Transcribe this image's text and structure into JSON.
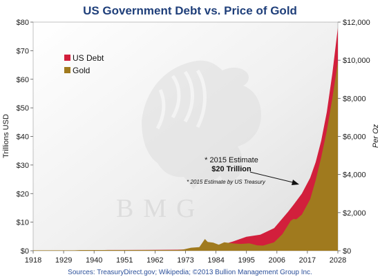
{
  "chart_data": {
    "type": "area",
    "title": "US Government Debt vs. Price of Gold",
    "ylabel_left": "Trillions  USD",
    "ylabel_right": "Per Oz",
    "x_ticks": [
      "1918",
      "1929",
      "1940",
      "1951",
      "1962",
      "1973",
      "1984",
      "1995",
      "2006",
      "2017",
      "2028"
    ],
    "y_left_ticks": [
      "$0",
      "$10",
      "$20",
      "$30",
      "$40",
      "$50",
      "$60",
      "$70",
      "$80"
    ],
    "y_right_ticks": [
      "$0",
      "$2,000",
      "$4,000",
      "$6,000",
      "$8,000",
      "$10,000",
      "$12,000"
    ],
    "xlim": [
      1918,
      2028
    ],
    "ylim_left": [
      0,
      80
    ],
    "ylim_right": [
      0,
      12000
    ],
    "grid": false,
    "legend_position": "top-left",
    "series": [
      {
        "name": "US Debt",
        "color": "#d21f3c",
        "axis": "left",
        "x": [
          1918,
          1925,
          1935,
          1945,
          1950,
          1960,
          1970,
          1975,
          1980,
          1985,
          1990,
          1995,
          2000,
          2005,
          2010,
          2012,
          2015,
          2018,
          2020,
          2022,
          2024,
          2026,
          2028
        ],
        "values": [
          0.03,
          0.02,
          0.03,
          0.26,
          0.26,
          0.29,
          0.37,
          0.53,
          0.91,
          1.8,
          3.2,
          4.9,
          5.6,
          7.9,
          13.6,
          16.1,
          20.0,
          25.5,
          31.0,
          38.5,
          48.5,
          62.0,
          78.0
        ]
      },
      {
        "name": "Gold",
        "color": "#a07a1e",
        "axis": "right",
        "x": [
          1918,
          1933,
          1935,
          1970,
          1972,
          1975,
          1978,
          1980,
          1981,
          1983,
          1985,
          1987,
          1990,
          1993,
          1996,
          1999,
          2001,
          2005,
          2008,
          2011,
          2012,
          2013,
          2015,
          2018,
          2020,
          2022,
          2024,
          2026,
          2028
        ],
        "values": [
          20,
          20,
          35,
          36,
          58,
          160,
          193,
          615,
          460,
          424,
          317,
          447,
          383,
          360,
          387,
          279,
          271,
          445,
          872,
          1572,
          1669,
          1650,
          1900,
          2700,
          3700,
          4900,
          6300,
          8000,
          9900
        ]
      }
    ],
    "annotations": {
      "estimate_line1": "* 2015 Estimate",
      "estimate_line2": "$20 Trillion",
      "estimate_note": "* 2015 Estimate by US Treasury"
    },
    "source": "Sources: TreasuryDirect.gov; Wikipedia;  ©2013 Bullion Management Group Inc.",
    "watermark": "BMG"
  }
}
